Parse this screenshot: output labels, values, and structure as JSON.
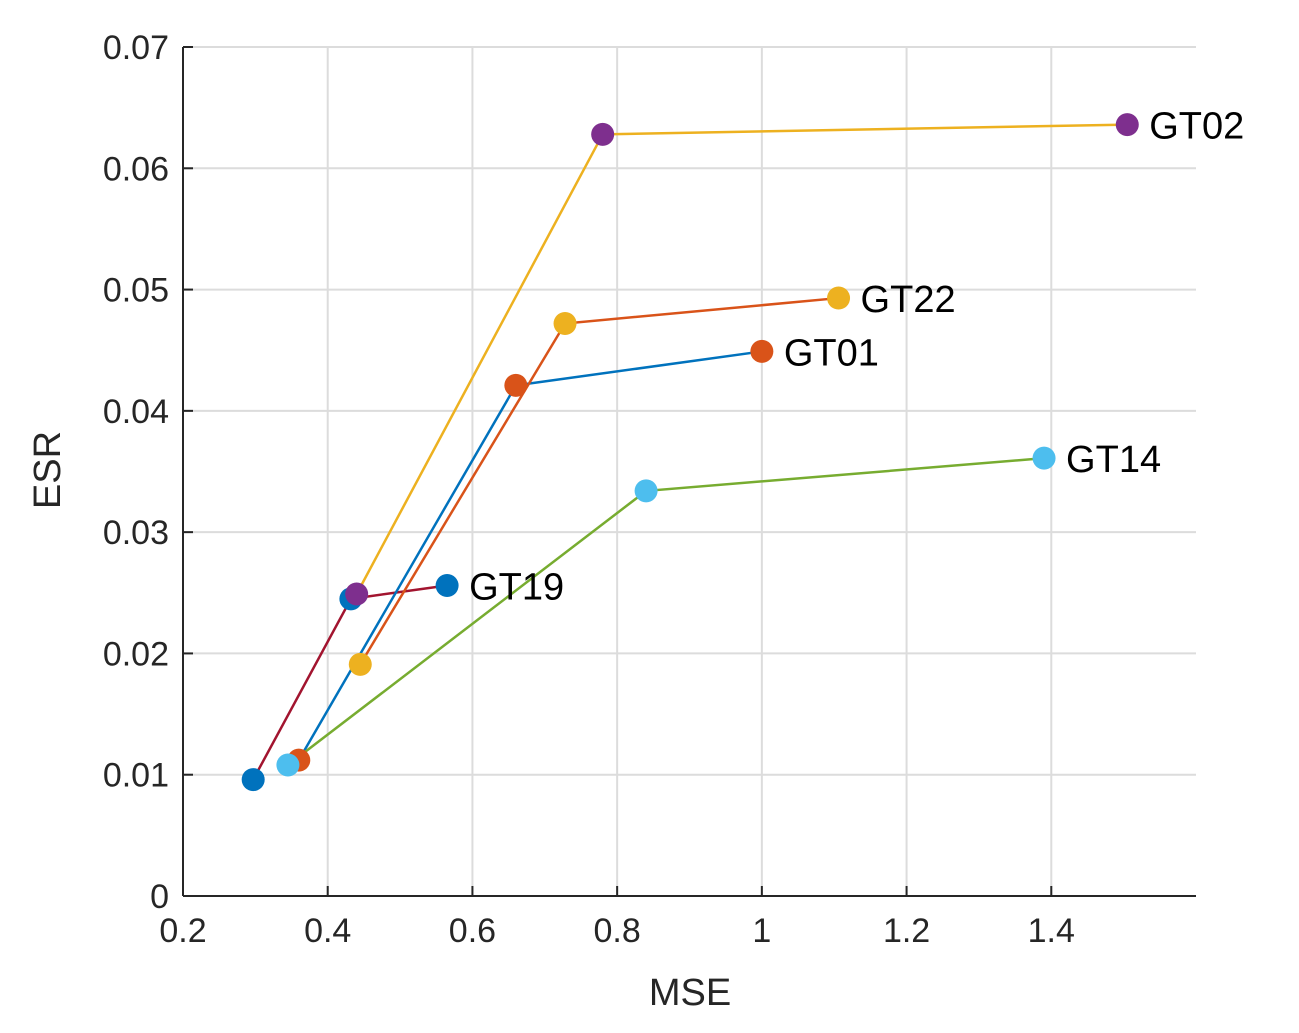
{
  "chart_data": {
    "type": "line",
    "title": "",
    "xlabel": "MSE",
    "ylabel": "ESR",
    "xlim": [
      0.2,
      1.6
    ],
    "ylim": [
      0,
      0.07
    ],
    "xticks": [
      "0.2",
      "0.4",
      "0.6",
      "0.8",
      "1",
      "1.2",
      "1.4"
    ],
    "yticks": [
      "0",
      "0.01",
      "0.02",
      "0.03",
      "0.04",
      "0.05",
      "0.06",
      "0.07"
    ],
    "grid": true,
    "legend": "none",
    "series": [
      {
        "name": "GT19",
        "color": "#A2142F",
        "marker_color": "#0072BD",
        "x": [
          0.297,
          0.432,
          0.565
        ],
        "y": [
          0.0096,
          0.0245,
          0.0256
        ]
      },
      {
        "name": "GT01",
        "color": "#0072BD",
        "marker_color": "#D95319",
        "x": [
          0.36,
          0.66,
          1.0
        ],
        "y": [
          0.0112,
          0.0421,
          0.0449
        ]
      },
      {
        "name": "GT22",
        "color": "#D95319",
        "marker_color": "#EDB120",
        "x": [
          0.445,
          0.728,
          1.106
        ],
        "y": [
          0.0191,
          0.0472,
          0.0493
        ]
      },
      {
        "name": "GT02",
        "color": "#EDB120",
        "marker_color": "#7E2F8E",
        "x": [
          0.44,
          0.78,
          1.505
        ],
        "y": [
          0.0249,
          0.0628,
          0.0636
        ]
      },
      {
        "name": "GT14",
        "color": "#77AC30",
        "marker_color": "#4DBEEE",
        "x": [
          0.345,
          0.84,
          1.39
        ],
        "y": [
          0.0108,
          0.0334,
          0.0361
        ]
      }
    ]
  }
}
